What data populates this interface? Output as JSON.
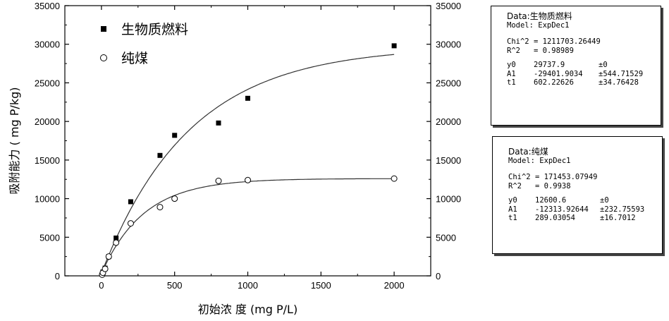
{
  "chart_data": {
    "type": "scatter",
    "xlabel": "初始浓 度 (mg P/L)",
    "ylabel": "吸附能力 ( mg P/kg)",
    "xlim": [
      -250,
      2250
    ],
    "ylim": [
      0,
      35000
    ],
    "x_ticks": [
      "0",
      "500",
      "1000",
      "1500",
      "2000"
    ],
    "y_ticks": [
      "0",
      "5000",
      "10000",
      "15000",
      "20000",
      "25000",
      "30000",
      "35000"
    ],
    "legend_position": "top-left",
    "series": [
      {
        "name": "生物质燃料",
        "marker": "filled-square",
        "color": "#000000",
        "x": [
          5,
          10,
          25,
          50,
          100,
          200,
          400,
          500,
          800,
          1000,
          2000
        ],
        "y": [
          200,
          500,
          1000,
          2500,
          4900,
          9600,
          15600,
          18200,
          19800,
          23000,
          29800
        ],
        "fit": {
          "model": "ExpDec1",
          "y0": 29737.9,
          "A1": -29401.9034,
          "t1": 602.22626
        }
      },
      {
        "name": "纯煤",
        "marker": "open-circle",
        "color": "#000000",
        "x": [
          5,
          10,
          25,
          50,
          100,
          200,
          400,
          500,
          800,
          1000,
          2000
        ],
        "y": [
          150,
          400,
          900,
          2500,
          4300,
          6800,
          8900,
          10000,
          12300,
          12400,
          12600
        ],
        "fit": {
          "model": "ExpDec1",
          "y0": 12600.6,
          "A1": -12313.92644,
          "t1": 289.03054
        }
      }
    ]
  },
  "fit_boxes": [
    {
      "data_label": "Data:",
      "data_name": "生物质燃料",
      "model_line": "Model: ExpDec1",
      "chi_label": "Chi^2",
      "chi_value": "= 1211703.26449",
      "r_label": "R^2",
      "r_value": "= 0.98989",
      "params": [
        {
          "name": "y0",
          "value": "29737.9",
          "error": "±0"
        },
        {
          "name": "A1",
          "value": "-29401.9034",
          "error": "±544.71529"
        },
        {
          "name": "t1",
          "value": "602.22626",
          "error": "±34.76428"
        }
      ]
    },
    {
      "data_label": "Data:",
      "data_name": "纯煤",
      "model_line": "Model: ExpDec1",
      "chi_label": "Chi^2",
      "chi_value": "= 171453.07949",
      "r_label": "R^2",
      "r_value": "= 0.9938",
      "params": [
        {
          "name": "y0",
          "value": "12600.6",
          "error": "±0"
        },
        {
          "name": "A1",
          "value": "-12313.92644",
          "error": "±232.75593"
        },
        {
          "name": "t1",
          "value": "289.03054",
          "error": "±16.7012"
        }
      ]
    }
  ]
}
